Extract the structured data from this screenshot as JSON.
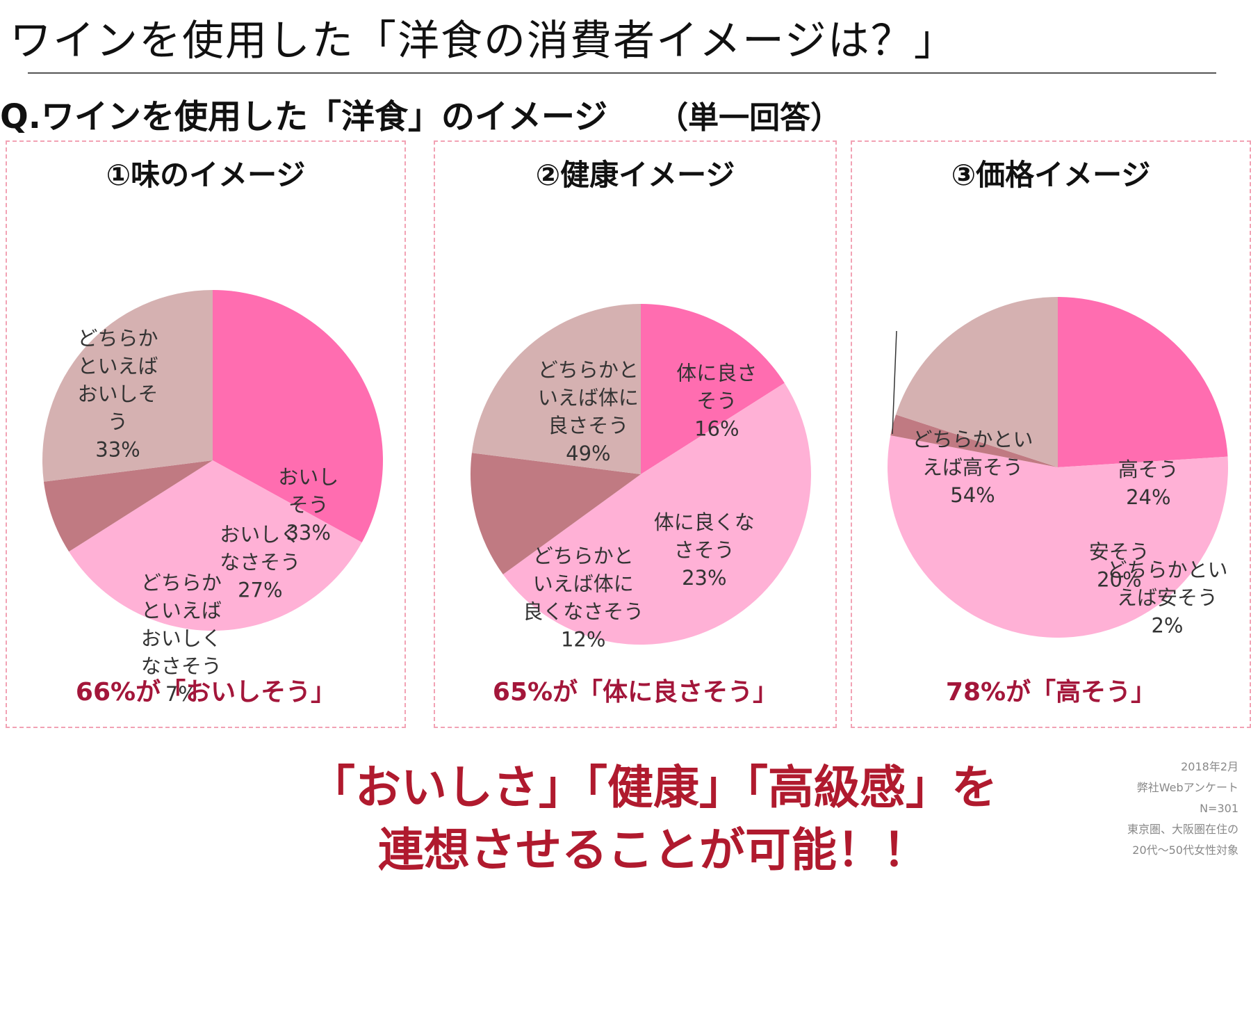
{
  "title": "ワインを使用した「洋食の消費者イメージは？」",
  "question": "Q.ワインを使用した「洋食」のイメージ",
  "question_note": "（単一回答）",
  "colors": {
    "pink_dark": "#ff6db0",
    "pink_light": "#ffb1d6",
    "mauve_dark": "#c07a82",
    "mauve_light": "#d5b1b1",
    "accent_red": "#a3163a"
  },
  "chart_data": [
    {
      "type": "pie",
      "title": "①味のイメージ",
      "slices": [
        {
          "label": [
            "おいし",
            "そう"
          ],
          "value": 33,
          "value_label": "33%",
          "color": "#ff6db0"
        },
        {
          "label": [
            "どちらか",
            "といえば",
            "おいしそ",
            "う"
          ],
          "value": 33,
          "value_label": "33%",
          "color": "#ffb1d6"
        },
        {
          "label": [
            "どちらか",
            "といえば",
            "おいしく",
            "なさそう"
          ],
          "value": 7,
          "value_label": "7%",
          "color": "#c07a82"
        },
        {
          "label": [
            "おいしく",
            "なさそう"
          ],
          "value": 27,
          "value_label": "27%",
          "color": "#d5b1b1"
        }
      ],
      "summary": "66%が「おいしそう」"
    },
    {
      "type": "pie",
      "title": "②健康イメージ",
      "slices": [
        {
          "label": [
            "体に良さ",
            "そう"
          ],
          "value": 16,
          "value_label": "16%",
          "color": "#ff6db0"
        },
        {
          "label": [
            "どちらかと",
            "いえば体に",
            "良さそう"
          ],
          "value": 49,
          "value_label": "49%",
          "color": "#ffb1d6"
        },
        {
          "label": [
            "どちらかと",
            "いえば体に",
            "良くなさそう"
          ],
          "value": 12,
          "value_label": "12%",
          "color": "#c07a82"
        },
        {
          "label": [
            "体に良くな",
            "さそう"
          ],
          "value": 23,
          "value_label": "23%",
          "color": "#d5b1b1"
        }
      ],
      "summary": "65%が「体に良さそう」"
    },
    {
      "type": "pie",
      "title": "③価格イメージ",
      "slices": [
        {
          "label": [
            "高そう"
          ],
          "value": 24,
          "value_label": "24%",
          "color": "#ff6db0"
        },
        {
          "label": [
            "どちらかとい",
            "えば高そう"
          ],
          "value": 54,
          "value_label": "54%",
          "color": "#ffb1d6"
        },
        {
          "label": [
            "どちらかとい",
            "えば安そう"
          ],
          "value": 2,
          "value_label": "2%",
          "color": "#c07a82"
        },
        {
          "label": [
            "安そう"
          ],
          "value": 20,
          "value_label": "20%",
          "color": "#d5b1b1"
        }
      ],
      "summary": "78%が「高そう」"
    }
  ],
  "conclusion": [
    "「おいしさ」「健康」「高級感」を",
    "連想させることが可能！！"
  ],
  "footnote": [
    "2018年2月",
    "弊社Webアンケート",
    "N=301",
    "東京圏、大阪圏在住の",
    "20代～50代女性対象"
  ]
}
